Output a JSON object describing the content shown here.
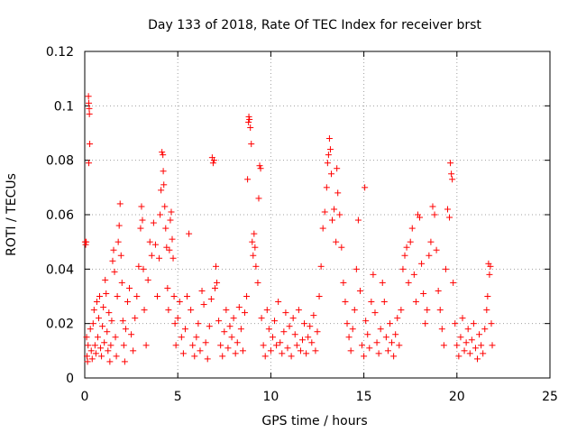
{
  "chart_data": {
    "type": "scatter",
    "title": "Day 133 of 2018, Rate Of TEC Index for receiver brst",
    "xlabel": "GPS time / hours",
    "ylabel": "ROTI / TECUs",
    "xlim": [
      0,
      25
    ],
    "ylim": [
      0,
      0.12
    ],
    "xticks": [
      0,
      5,
      10,
      15,
      20,
      25
    ],
    "xtick_labels": [
      "0",
      "5",
      "10",
      "15",
      "20",
      "25"
    ],
    "yticks": [
      0,
      0.02,
      0.04,
      0.06,
      0.08,
      0.1,
      0.12
    ],
    "ytick_labels": [
      "0",
      "0.02",
      "0.04",
      "0.06",
      "0.08",
      "0.1",
      "0.12"
    ],
    "grid": true,
    "marker": "+",
    "color": "#ff0000",
    "series": [
      {
        "name": "ROTI",
        "points": [
          [
            0.02,
            0.05
          ],
          [
            0.05,
            0.049
          ],
          [
            0.08,
            0.05
          ],
          [
            0.1,
            0.015
          ],
          [
            0.12,
            0.008
          ],
          [
            0.15,
            0.006
          ],
          [
            0.18,
            0.012
          ],
          [
            0.2,
            0.1035
          ],
          [
            0.22,
            0.101
          ],
          [
            0.24,
            0.099
          ],
          [
            0.25,
            0.097
          ],
          [
            0.27,
            0.086
          ],
          [
            0.22,
            0.079
          ],
          [
            0.3,
            0.018
          ],
          [
            0.35,
            0.01
          ],
          [
            0.4,
            0.007
          ],
          [
            0.45,
            0.02
          ],
          [
            0.5,
            0.025
          ],
          [
            0.55,
            0.012
          ],
          [
            0.6,
            0.009
          ],
          [
            0.65,
            0.028
          ],
          [
            0.7,
            0.015
          ],
          [
            0.75,
            0.022
          ],
          [
            0.8,
            0.03
          ],
          [
            0.85,
            0.011
          ],
          [
            0.9,
            0.008
          ],
          [
            0.95,
            0.019
          ],
          [
            1.0,
            0.026
          ],
          [
            1.05,
            0.013
          ],
          [
            1.1,
            0.036
          ],
          [
            1.15,
            0.031
          ],
          [
            1.2,
            0.017
          ],
          [
            1.25,
            0.01
          ],
          [
            1.3,
            0.024
          ],
          [
            1.35,
            0.006
          ],
          [
            1.4,
            0.012
          ],
          [
            1.45,
            0.021
          ],
          [
            1.5,
            0.043
          ],
          [
            1.55,
            0.047
          ],
          [
            1.6,
            0.039
          ],
          [
            1.65,
            0.015
          ],
          [
            1.7,
            0.008
          ],
          [
            1.75,
            0.03
          ],
          [
            1.8,
            0.05
          ],
          [
            1.85,
            0.056
          ],
          [
            1.9,
            0.064
          ],
          [
            1.95,
            0.045
          ],
          [
            2.0,
            0.035
          ],
          [
            2.05,
            0.021
          ],
          [
            2.1,
            0.012
          ],
          [
            2.15,
            0.006
          ],
          [
            2.2,
            0.018
          ],
          [
            2.3,
            0.028
          ],
          [
            2.4,
            0.033
          ],
          [
            2.5,
            0.016
          ],
          [
            2.6,
            0.01
          ],
          [
            2.7,
            0.022
          ],
          [
            2.8,
            0.03
          ],
          [
            2.9,
            0.041
          ],
          [
            3.0,
            0.055
          ],
          [
            3.05,
            0.063
          ],
          [
            3.1,
            0.058
          ],
          [
            3.15,
            0.04
          ],
          [
            3.2,
            0.025
          ],
          [
            3.3,
            0.012
          ],
          [
            3.4,
            0.036
          ],
          [
            3.5,
            0.05
          ],
          [
            3.6,
            0.045
          ],
          [
            3.7,
            0.057
          ],
          [
            3.8,
            0.049
          ],
          [
            3.9,
            0.03
          ],
          [
            4.0,
            0.044
          ],
          [
            4.05,
            0.06
          ],
          [
            4.1,
            0.069
          ],
          [
            4.15,
            0.083
          ],
          [
            4.2,
            0.082
          ],
          [
            4.22,
            0.076
          ],
          [
            4.25,
            0.071
          ],
          [
            4.3,
            0.063
          ],
          [
            4.35,
            0.055
          ],
          [
            4.4,
            0.048
          ],
          [
            4.45,
            0.033
          ],
          [
            4.5,
            0.025
          ],
          [
            4.55,
            0.047
          ],
          [
            4.6,
            0.058
          ],
          [
            4.65,
            0.061
          ],
          [
            4.7,
            0.051
          ],
          [
            4.75,
            0.044
          ],
          [
            4.8,
            0.03
          ],
          [
            4.85,
            0.02
          ],
          [
            4.9,
            0.012
          ],
          [
            5.0,
            0.022
          ],
          [
            5.1,
            0.028
          ],
          [
            5.2,
            0.015
          ],
          [
            5.3,
            0.009
          ],
          [
            5.4,
            0.018
          ],
          [
            5.5,
            0.03
          ],
          [
            5.6,
            0.053
          ],
          [
            5.7,
            0.025
          ],
          [
            5.8,
            0.012
          ],
          [
            5.9,
            0.008
          ],
          [
            6.0,
            0.015
          ],
          [
            6.1,
            0.02
          ],
          [
            6.2,
            0.01
          ],
          [
            6.3,
            0.032
          ],
          [
            6.4,
            0.027
          ],
          [
            6.5,
            0.013
          ],
          [
            6.6,
            0.007
          ],
          [
            6.7,
            0.019
          ],
          [
            6.8,
            0.029
          ],
          [
            6.85,
            0.081
          ],
          [
            6.9,
            0.079
          ],
          [
            6.95,
            0.08
          ],
          [
            7.0,
            0.033
          ],
          [
            7.05,
            0.041
          ],
          [
            7.1,
            0.035
          ],
          [
            7.2,
            0.021
          ],
          [
            7.3,
            0.012
          ],
          [
            7.4,
            0.008
          ],
          [
            7.5,
            0.017
          ],
          [
            7.6,
            0.025
          ],
          [
            7.7,
            0.011
          ],
          [
            7.8,
            0.019
          ],
          [
            7.9,
            0.015
          ],
          [
            8.0,
            0.022
          ],
          [
            8.1,
            0.009
          ],
          [
            8.2,
            0.013
          ],
          [
            8.3,
            0.026
          ],
          [
            8.4,
            0.018
          ],
          [
            8.5,
            0.01
          ],
          [
            8.6,
            0.024
          ],
          [
            8.7,
            0.03
          ],
          [
            8.75,
            0.073
          ],
          [
            8.8,
            0.094
          ],
          [
            8.82,
            0.096
          ],
          [
            8.85,
            0.095
          ],
          [
            8.9,
            0.092
          ],
          [
            8.95,
            0.086
          ],
          [
            9.0,
            0.05
          ],
          [
            9.05,
            0.045
          ],
          [
            9.1,
            0.053
          ],
          [
            9.15,
            0.048
          ],
          [
            9.2,
            0.041
          ],
          [
            9.3,
            0.035
          ],
          [
            9.35,
            0.066
          ],
          [
            9.4,
            0.078
          ],
          [
            9.45,
            0.077
          ],
          [
            9.5,
            0.022
          ],
          [
            9.6,
            0.012
          ],
          [
            9.7,
            0.008
          ],
          [
            9.8,
            0.025
          ],
          [
            9.9,
            0.018
          ],
          [
            10.0,
            0.01
          ],
          [
            10.1,
            0.015
          ],
          [
            10.2,
            0.021
          ],
          [
            10.3,
            0.012
          ],
          [
            10.4,
            0.028
          ],
          [
            10.5,
            0.013
          ],
          [
            10.6,
            0.009
          ],
          [
            10.7,
            0.017
          ],
          [
            10.8,
            0.024
          ],
          [
            10.9,
            0.011
          ],
          [
            11.0,
            0.019
          ],
          [
            11.1,
            0.008
          ],
          [
            11.2,
            0.022
          ],
          [
            11.3,
            0.016
          ],
          [
            11.4,
            0.012
          ],
          [
            11.5,
            0.025
          ],
          [
            11.6,
            0.01
          ],
          [
            11.7,
            0.014
          ],
          [
            11.8,
            0.02
          ],
          [
            11.9,
            0.009
          ],
          [
            12.0,
            0.015
          ],
          [
            12.1,
            0.019
          ],
          [
            12.2,
            0.013
          ],
          [
            12.3,
            0.023
          ],
          [
            12.4,
            0.01
          ],
          [
            12.5,
            0.017
          ],
          [
            12.6,
            0.03
          ],
          [
            12.7,
            0.041
          ],
          [
            12.8,
            0.055
          ],
          [
            12.9,
            0.061
          ],
          [
            13.0,
            0.07
          ],
          [
            13.05,
            0.079
          ],
          [
            13.1,
            0.082
          ],
          [
            13.15,
            0.088
          ],
          [
            13.2,
            0.084
          ],
          [
            13.25,
            0.075
          ],
          [
            13.3,
            0.058
          ],
          [
            13.4,
            0.062
          ],
          [
            13.5,
            0.05
          ],
          [
            13.55,
            0.077
          ],
          [
            13.6,
            0.068
          ],
          [
            13.7,
            0.06
          ],
          [
            13.8,
            0.048
          ],
          [
            13.9,
            0.035
          ],
          [
            14.0,
            0.028
          ],
          [
            14.1,
            0.02
          ],
          [
            14.2,
            0.015
          ],
          [
            14.3,
            0.01
          ],
          [
            14.4,
            0.018
          ],
          [
            14.5,
            0.025
          ],
          [
            14.6,
            0.04
          ],
          [
            14.7,
            0.058
          ],
          [
            14.8,
            0.032
          ],
          [
            14.9,
            0.012
          ],
          [
            15.0,
            0.008
          ],
          [
            15.05,
            0.07
          ],
          [
            15.1,
            0.021
          ],
          [
            15.2,
            0.016
          ],
          [
            15.3,
            0.011
          ],
          [
            15.4,
            0.028
          ],
          [
            15.5,
            0.038
          ],
          [
            15.6,
            0.024
          ],
          [
            15.7,
            0.013
          ],
          [
            15.8,
            0.009
          ],
          [
            15.9,
            0.018
          ],
          [
            16.0,
            0.035
          ],
          [
            16.1,
            0.028
          ],
          [
            16.2,
            0.015
          ],
          [
            16.3,
            0.01
          ],
          [
            16.4,
            0.02
          ],
          [
            16.5,
            0.013
          ],
          [
            16.6,
            0.008
          ],
          [
            16.7,
            0.016
          ],
          [
            16.8,
            0.022
          ],
          [
            16.9,
            0.012
          ],
          [
            17.0,
            0.025
          ],
          [
            17.1,
            0.04
          ],
          [
            17.2,
            0.045
          ],
          [
            17.3,
            0.048
          ],
          [
            17.4,
            0.035
          ],
          [
            17.5,
            0.05
          ],
          [
            17.6,
            0.055
          ],
          [
            17.7,
            0.038
          ],
          [
            17.8,
            0.028
          ],
          [
            17.9,
            0.06
          ],
          [
            18.0,
            0.059
          ],
          [
            18.1,
            0.042
          ],
          [
            18.2,
            0.031
          ],
          [
            18.3,
            0.02
          ],
          [
            18.4,
            0.025
          ],
          [
            18.5,
            0.045
          ],
          [
            18.6,
            0.05
          ],
          [
            18.7,
            0.063
          ],
          [
            18.8,
            0.06
          ],
          [
            18.9,
            0.047
          ],
          [
            19.0,
            0.032
          ],
          [
            19.1,
            0.025
          ],
          [
            19.2,
            0.018
          ],
          [
            19.3,
            0.012
          ],
          [
            19.4,
            0.04
          ],
          [
            19.5,
            0.062
          ],
          [
            19.6,
            0.059
          ],
          [
            19.65,
            0.079
          ],
          [
            19.7,
            0.075
          ],
          [
            19.75,
            0.073
          ],
          [
            19.8,
            0.035
          ],
          [
            19.9,
            0.02
          ],
          [
            20.0,
            0.012
          ],
          [
            20.1,
            0.008
          ],
          [
            20.2,
            0.015
          ],
          [
            20.3,
            0.022
          ],
          [
            20.4,
            0.01
          ],
          [
            20.5,
            0.013
          ],
          [
            20.6,
            0.018
          ],
          [
            20.7,
            0.009
          ],
          [
            20.8,
            0.014
          ],
          [
            20.9,
            0.02
          ],
          [
            21.0,
            0.011
          ],
          [
            21.1,
            0.007
          ],
          [
            21.2,
            0.016
          ],
          [
            21.3,
            0.012
          ],
          [
            21.4,
            0.009
          ],
          [
            21.5,
            0.018
          ],
          [
            21.6,
            0.025
          ],
          [
            21.65,
            0.03
          ],
          [
            21.7,
            0.042
          ],
          [
            21.75,
            0.038
          ],
          [
            21.8,
            0.041
          ],
          [
            21.85,
            0.02
          ],
          [
            21.9,
            0.012
          ]
        ]
      }
    ]
  }
}
